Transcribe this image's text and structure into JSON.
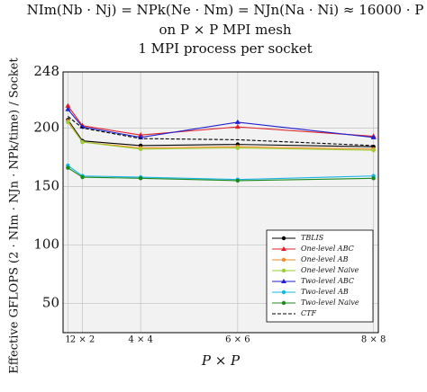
{
  "chart_data": {
    "type": "line",
    "title": "NIm(Nb · Nj) = NPk(Ne · Nm) = NJn(Na · Ni) ≈ 16000 · P",
    "subtitle": [
      "on P × P MPI mesh",
      "1 MPI process per socket"
    ],
    "x_label": "P × P",
    "y_label": "Effective GFLOPS (2 · NIm · NJn · NPk/time) / Socket",
    "x": [
      1,
      4,
      16,
      36,
      64
    ],
    "xlim": [
      0,
      65
    ],
    "xticks": [
      1,
      {
        "value": 4,
        "label": "2 × 2"
      },
      {
        "value": 16,
        "label": "4 × 4"
      },
      {
        "value": 36,
        "label": "6 × 6"
      },
      {
        "value": 64,
        "label": "8 × 8"
      }
    ],
    "ylim": [
      25,
      248
    ],
    "yticks": [
      50,
      100,
      150,
      200,
      248
    ],
    "grid": true,
    "legend": "bottom-right",
    "series": [
      {
        "name": "TBLIS",
        "color": "#000000",
        "marker": "circle",
        "dash": false,
        "values": [
          207,
          189,
          185,
          186,
          184
        ]
      },
      {
        "name": "One-level ABC",
        "color": "#e0202a",
        "marker": "triangle",
        "dash": false,
        "values": [
          219,
          202,
          194,
          201,
          193
        ]
      },
      {
        "name": "One-level AB",
        "color": "#f28c28",
        "marker": "circle",
        "dash": false,
        "values": [
          206,
          188,
          183,
          184,
          182
        ]
      },
      {
        "name": "One-level Naive",
        "color": "#9acd32",
        "marker": "circle",
        "dash": false,
        "values": [
          205,
          188,
          182,
          183,
          181
        ]
      },
      {
        "name": "Two-level ABC",
        "color": "#1f1fd0",
        "marker": "triangle",
        "dash": false,
        "values": [
          216,
          201,
          192,
          205,
          192
        ]
      },
      {
        "name": "Two-level AB",
        "color": "#18b4e8",
        "marker": "circle",
        "dash": false,
        "values": [
          168,
          159,
          158,
          156,
          159
        ]
      },
      {
        "name": "Two-level Naive",
        "color": "#1a8a1a",
        "marker": "circle",
        "dash": false,
        "values": [
          166,
          158,
          157,
          155,
          157
        ]
      },
      {
        "name": "CTF",
        "color": "#000000",
        "marker": "none",
        "dash": true,
        "values": [
          210,
          200,
          191,
          190,
          185
        ]
      }
    ]
  }
}
